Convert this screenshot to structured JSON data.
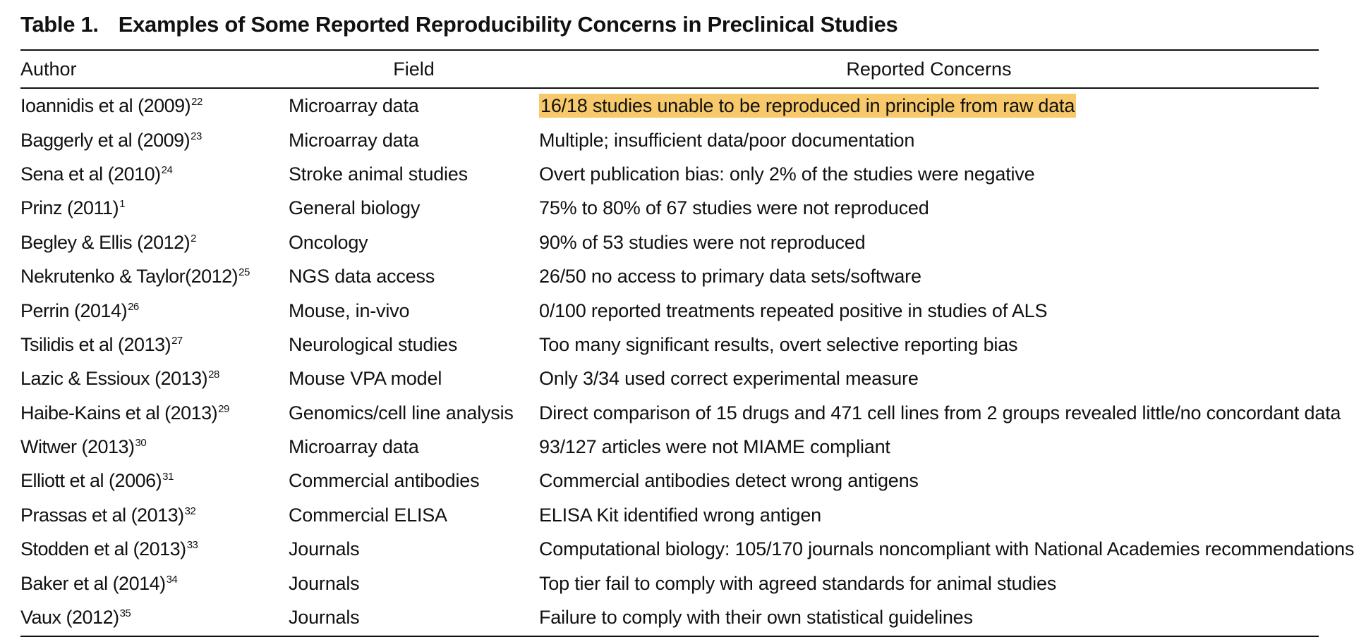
{
  "table": {
    "caption_number": "Table 1.",
    "caption_title": "Examples of Some Reported Reproducibility Concerns in Preclinical Studies",
    "headers": {
      "author": "Author",
      "field": "Field",
      "concerns": "Reported Concerns"
    },
    "highlight_color": "#f7c96a",
    "rows": [
      {
        "author": "Ioannidis et al (2009)",
        "ref": "22",
        "field": "Microarray data",
        "concern": "16/18 studies unable to be reproduced in principle from raw data",
        "highlighted": true
      },
      {
        "author": "Baggerly et al (2009)",
        "ref": "23",
        "field": "Microarray data",
        "concern": "Multiple; insufficient data/poor documentation",
        "highlighted": false
      },
      {
        "author": "Sena et al (2010)",
        "ref": "24",
        "field": "Stroke animal studies",
        "concern": "Overt publication bias: only 2% of the studies were negative",
        "highlighted": false
      },
      {
        "author": "Prinz (2011)",
        "ref": "1",
        "field": "General biology",
        "concern": "75% to 80% of 67 studies were not reproduced",
        "highlighted": false
      },
      {
        "author": "Begley & Ellis (2012)",
        "ref": "2",
        "field": "Oncology",
        "concern": "90% of 53 studies were not reproduced",
        "highlighted": false
      },
      {
        "author": "Nekrutenko & Taylor(2012)",
        "ref": "25",
        "field": "NGS data access",
        "concern": "26/50 no access to primary data sets/software",
        "highlighted": false
      },
      {
        "author": "Perrin (2014)",
        "ref": "26",
        "field": "Mouse, in-vivo",
        "concern": "0/100 reported treatments repeated positive in studies of ALS",
        "highlighted": false
      },
      {
        "author": "Tsilidis et al (2013)",
        "ref": "27",
        "field": "Neurological studies",
        "concern": "Too many significant results, overt selective reporting bias",
        "highlighted": false
      },
      {
        "author": "Lazic & Essioux (2013)",
        "ref": "28",
        "field": "Mouse VPA model",
        "concern": "Only 3/34 used correct experimental measure",
        "highlighted": false
      },
      {
        "author": "Haibe-Kains et al (2013)",
        "ref": "29",
        "field": "Genomics/cell line analysis",
        "concern": "Direct comparison of 15 drugs and 471 cell lines from 2 groups revealed little/no concordant data",
        "highlighted": false
      },
      {
        "author": "Witwer (2013)",
        "ref": "30",
        "field": "Microarray data",
        "concern": "93/127 articles were not MIAME compliant",
        "highlighted": false
      },
      {
        "author": "Elliott et al (2006)",
        "ref": "31",
        "field": "Commercial antibodies",
        "concern": "Commercial antibodies detect wrong antigens",
        "highlighted": false
      },
      {
        "author": "Prassas et al (2013)",
        "ref": "32",
        "field": "Commercial ELISA",
        "concern": "ELISA Kit identified wrong antigen",
        "highlighted": false
      },
      {
        "author": "Stodden et al (2013)",
        "ref": "33",
        "field": "Journals",
        "concern": "Computational biology: 105/170 journals noncompliant with National Academies recommendations",
        "highlighted": false
      },
      {
        "author": "Baker et al (2014)",
        "ref": "34",
        "field": "Journals",
        "concern": "Top tier fail to comply with agreed standards for animal studies",
        "highlighted": false
      },
      {
        "author": "Vaux (2012)",
        "ref": "35",
        "field": "Journals",
        "concern": "Failure to comply with their own statistical guidelines",
        "highlighted": false
      }
    ]
  }
}
